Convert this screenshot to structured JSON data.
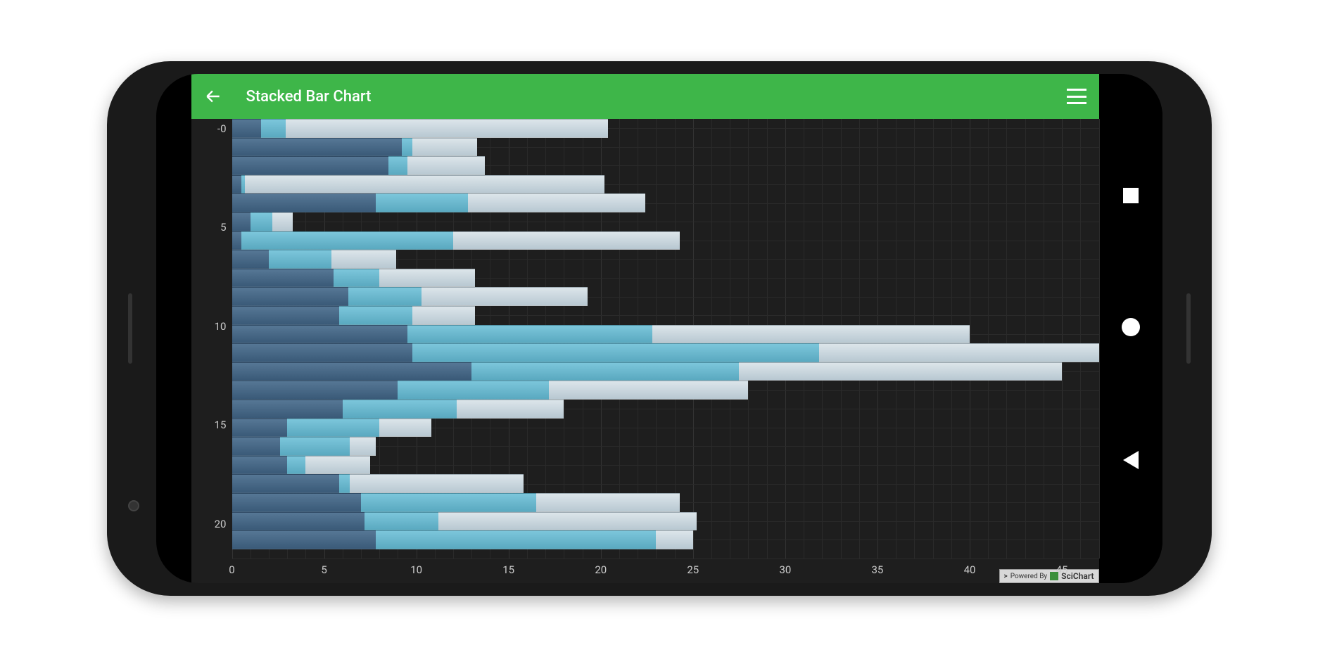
{
  "appbar": {
    "title": "Stacked Bar Chart",
    "bg_color": "#3eb649",
    "text_color": "#ffffff"
  },
  "chart": {
    "type": "stacked-horizontal-bar",
    "background_color": "#1e1e1e",
    "grid_color": "#333333",
    "grid_minor_color": "#2a2a2a",
    "axis_text_color": "#cccccc",
    "axis_fontsize": 15,
    "x_axis": {
      "min": 0,
      "max": 47,
      "tick_step": 5,
      "ticks": [
        0,
        5,
        10,
        15,
        20,
        25,
        30,
        35,
        40,
        45
      ]
    },
    "y_axis": {
      "min": -0.5,
      "max": 23,
      "ticks": [
        0,
        5,
        10,
        15,
        20
      ],
      "tick_labels": [
        "-0",
        "5",
        "10",
        "15",
        "20"
      ]
    },
    "series_colors": {
      "s1_top": "#567795",
      "s1_bottom": "#3a5a78",
      "s2_top": "#7cc6db",
      "s2_bottom": "#5aa9c0",
      "s3_top": "#dce5ea",
      "s3_bottom": "#b8c8d2"
    },
    "rows": [
      {
        "y": 0,
        "v": [
          1.6,
          1.3,
          17.5
        ]
      },
      {
        "y": 1,
        "v": [
          9.2,
          0.6,
          3.5
        ]
      },
      {
        "y": 2,
        "v": [
          8.5,
          1.0,
          4.2
        ]
      },
      {
        "y": 3,
        "v": [
          0.5,
          0.2,
          19.5
        ]
      },
      {
        "y": 4,
        "v": [
          7.8,
          5.0,
          9.6
        ]
      },
      {
        "y": 5,
        "v": [
          1.0,
          1.2,
          1.1
        ]
      },
      {
        "y": 6,
        "v": [
          0.5,
          11.5,
          12.3
        ]
      },
      {
        "y": 7,
        "v": [
          2.0,
          3.4,
          3.5
        ]
      },
      {
        "y": 8,
        "v": [
          5.5,
          2.5,
          5.2
        ]
      },
      {
        "y": 9,
        "v": [
          6.3,
          4.0,
          9.0
        ]
      },
      {
        "y": 10,
        "v": [
          5.8,
          4.0,
          3.4
        ]
      },
      {
        "y": 11,
        "v": [
          9.5,
          13.3,
          17.2
        ]
      },
      {
        "y": 12,
        "v": [
          10.0,
          22.5,
          15.5
        ]
      },
      {
        "y": 13,
        "v": [
          13.0,
          14.5,
          17.5
        ]
      },
      {
        "y": 14,
        "v": [
          9.0,
          8.2,
          10.8
        ]
      },
      {
        "y": 15,
        "v": [
          6.0,
          6.2,
          5.8
        ]
      },
      {
        "y": 16,
        "v": [
          3.0,
          5.0,
          2.8
        ]
      },
      {
        "y": 17,
        "v": [
          2.6,
          3.8,
          1.4
        ]
      },
      {
        "y": 18,
        "v": [
          3.0,
          1.0,
          3.5
        ]
      },
      {
        "y": 19,
        "v": [
          5.8,
          0.6,
          9.4
        ]
      },
      {
        "y": 20,
        "v": [
          7.0,
          9.5,
          7.8
        ]
      },
      {
        "y": 21,
        "v": [
          7.2,
          4.0,
          14.0
        ]
      },
      {
        "y": 22,
        "v": [
          7.8,
          15.2,
          2.0
        ]
      }
    ]
  },
  "watermark": {
    "prefix": ">",
    "label": "Powered By",
    "brand": "SciChart"
  }
}
